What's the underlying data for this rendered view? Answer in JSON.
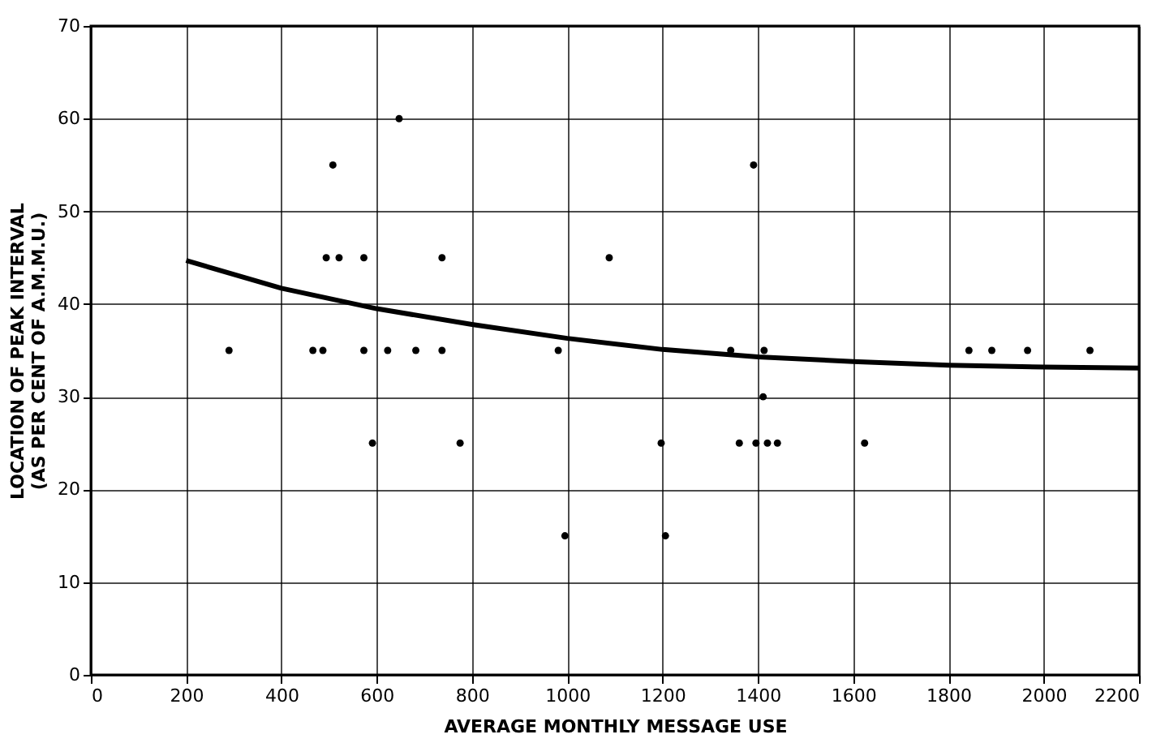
{
  "chart_data": {
    "type": "scatter",
    "xlabel": "AVERAGE MONTHLY MESSAGE USE",
    "ylabel": "LOCATION OF PEAK INTERVAL\n(AS PER CENT OF A.M.M.U.)",
    "xlim": [
      0,
      2200
    ],
    "ylim": [
      0,
      70
    ],
    "xticks": [
      0,
      200,
      400,
      600,
      800,
      1000,
      1200,
      1400,
      1600,
      1800,
      2000,
      2200
    ],
    "yticks": [
      0,
      10,
      20,
      30,
      40,
      50,
      60,
      70
    ],
    "grid": true,
    "marker": "circle",
    "series": [
      {
        "color": "#000000",
        "x": [
          290,
          466,
          487,
          494,
          508,
          521,
          573,
          573,
          591,
          623,
          647,
          682,
          737,
          737,
          775,
          981,
          995,
          1088,
          1197,
          1206,
          1343,
          1361,
          1391,
          1396,
          1411,
          1413,
          1420,
          1441,
          1624,
          1843,
          1891,
          1966,
          2097
        ],
        "values": [
          35,
          35,
          35,
          45,
          55,
          45,
          45,
          35,
          25,
          35,
          60,
          35,
          45,
          35,
          25,
          35,
          15,
          45,
          25,
          15,
          35,
          25,
          55,
          25,
          30,
          35,
          25,
          25,
          25,
          35,
          35,
          35,
          35
        ]
      },
      {
        "type": "line",
        "marker": "none",
        "color": "#000000",
        "x": [
          200,
          400,
          600,
          800,
          1000,
          1200,
          1400,
          1600,
          1800,
          2000,
          2200
        ],
        "values": [
          44.7,
          41.7,
          39.5,
          37.8,
          36.3,
          35.1,
          34.3,
          33.8,
          33.4,
          33.2,
          33.1
        ]
      }
    ]
  }
}
